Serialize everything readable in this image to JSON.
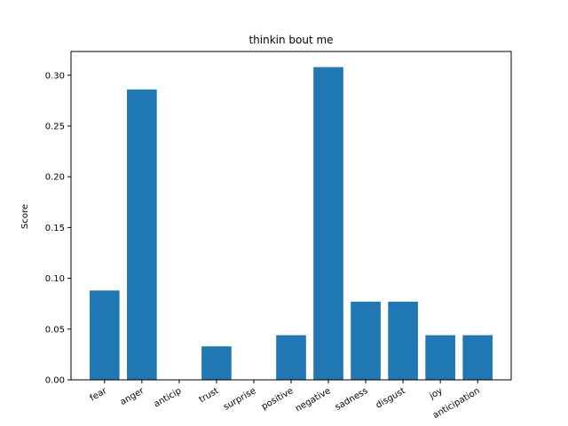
{
  "chart_data": {
    "type": "bar",
    "title": "thinkin bout me",
    "xlabel": "",
    "ylabel": "Score",
    "categories": [
      "fear",
      "anger",
      "anticip",
      "trust",
      "surprise",
      "positive",
      "negative",
      "sadness",
      "disgust",
      "joy",
      "anticipation"
    ],
    "values": [
      0.088,
      0.286,
      0.0,
      0.033,
      0.0,
      0.044,
      0.308,
      0.077,
      0.077,
      0.044,
      0.044
    ],
    "ylim": [
      0,
      0.3234
    ],
    "yticks": [
      0.0,
      0.05,
      0.1,
      0.15,
      0.2,
      0.25,
      0.3
    ],
    "ytick_labels": [
      "0.00",
      "0.05",
      "0.10",
      "0.15",
      "0.20",
      "0.25",
      "0.30"
    ],
    "bar_color": "#1f77b4",
    "grid": false,
    "legend": "none"
  }
}
